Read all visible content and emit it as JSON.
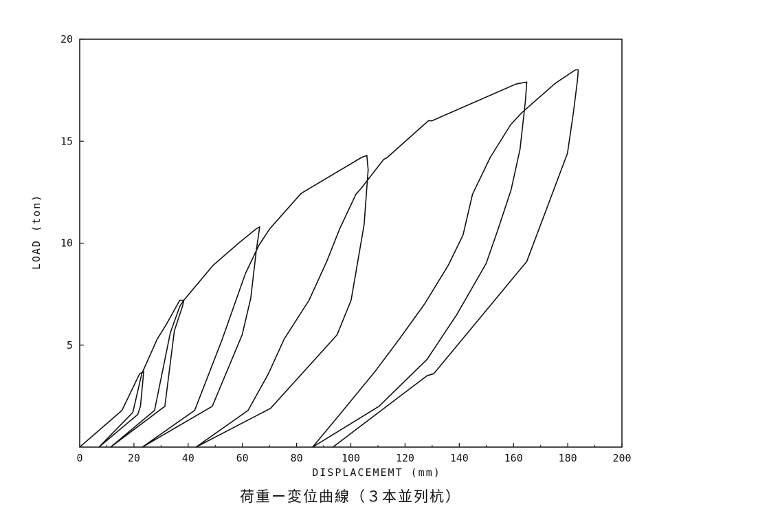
{
  "chart_data": {
    "type": "line",
    "title": "",
    "xlabel": "DISPLACEMEMT (mm)",
    "ylabel": "LOAD (ton)",
    "xlim": [
      0,
      200
    ],
    "ylim": [
      0,
      20
    ],
    "xticks": [
      0,
      20,
      40,
      60,
      80,
      100,
      120,
      140,
      160,
      180,
      200
    ],
    "yticks": [
      5,
      10,
      15,
      20
    ],
    "grid": false,
    "legend": "none",
    "line_color": "#111111",
    "series": [
      {
        "points": [
          [
            0,
            0
          ],
          [
            15.6,
            1.8
          ],
          [
            22.1,
            3.6
          ],
          [
            23.6,
            3.7
          ],
          [
            22.4,
            2.0
          ],
          [
            21.4,
            1.6
          ],
          [
            7.1,
            0
          ],
          [
            19.6,
            1.7
          ],
          [
            22.9,
            3.6
          ],
          [
            28.6,
            5.3
          ],
          [
            31.9,
            6.0
          ],
          [
            36.9,
            7.2
          ],
          [
            38.4,
            7.2
          ],
          [
            37.9,
            6.9
          ],
          [
            34.9,
            5.7
          ],
          [
            31.4,
            2.0
          ],
          [
            11.4,
            0
          ],
          [
            27.6,
            1.8
          ],
          [
            33.4,
            5.6
          ],
          [
            36.9,
            6.9
          ],
          [
            38.4,
            7.2
          ],
          [
            40.9,
            7.6
          ],
          [
            49.1,
            8.9
          ],
          [
            58.6,
            10.0
          ],
          [
            65.1,
            10.7
          ],
          [
            66.4,
            10.8
          ],
          [
            65.1,
            9.6
          ],
          [
            63.1,
            7.3
          ],
          [
            59.9,
            5.5
          ],
          [
            48.9,
            2.0
          ],
          [
            23.1,
            0
          ],
          [
            42.4,
            1.8
          ],
          [
            52.6,
            5.3
          ],
          [
            61.1,
            8.5
          ],
          [
            66.1,
            9.9
          ],
          [
            70.1,
            10.7
          ],
          [
            81.4,
            12.4
          ],
          [
            82.4,
            12.5
          ],
          [
            103.9,
            14.2
          ],
          [
            105.9,
            14.3
          ],
          [
            106.4,
            13.6
          ],
          [
            104.9,
            10.9
          ],
          [
            100.1,
            7.2
          ],
          [
            94.9,
            5.5
          ],
          [
            70.4,
            1.9
          ],
          [
            42.9,
            0
          ],
          [
            62.1,
            1.8
          ],
          [
            69.6,
            3.6
          ],
          [
            75.4,
            5.3
          ],
          [
            84.6,
            7.2
          ],
          [
            91.1,
            9.1
          ],
          [
            95.9,
            10.7
          ],
          [
            101.9,
            12.4
          ],
          [
            103.9,
            12.7
          ],
          [
            112.1,
            14.1
          ],
          [
            113.4,
            14.2
          ],
          [
            128.6,
            16.0
          ],
          [
            129.9,
            16.0
          ],
          [
            160.9,
            17.8
          ],
          [
            164.9,
            17.9
          ],
          [
            164.4,
            17.0
          ],
          [
            162.4,
            14.6
          ],
          [
            159.1,
            12.6
          ],
          [
            154.1,
            10.6
          ],
          [
            149.9,
            9.0
          ],
          [
            139.1,
            6.5
          ],
          [
            128.1,
            4.3
          ],
          [
            110.4,
            2.0
          ],
          [
            85.9,
            0
          ],
          [
            95.9,
            1.6
          ],
          [
            108.9,
            3.7
          ],
          [
            117.9,
            5.3
          ],
          [
            127.1,
            7.0
          ],
          [
            135.9,
            8.9
          ],
          [
            141.4,
            10.4
          ],
          [
            144.9,
            12.4
          ],
          [
            151.4,
            14.2
          ],
          [
            158.9,
            15.8
          ],
          [
            163.1,
            16.4
          ],
          [
            175.1,
            17.8
          ],
          [
            176.1,
            17.9
          ],
          [
            182.9,
            18.5
          ],
          [
            183.9,
            18.5
          ],
          [
            183.6,
            18.0
          ],
          [
            182.1,
            16.4
          ],
          [
            179.9,
            14.4
          ],
          [
            164.9,
            9.1
          ],
          [
            130.6,
            3.6
          ],
          [
            128.1,
            3.5
          ],
          [
            93.4,
            0
          ]
        ]
      }
    ]
  },
  "caption": "荷重ー変位曲線（３本並列杭）"
}
